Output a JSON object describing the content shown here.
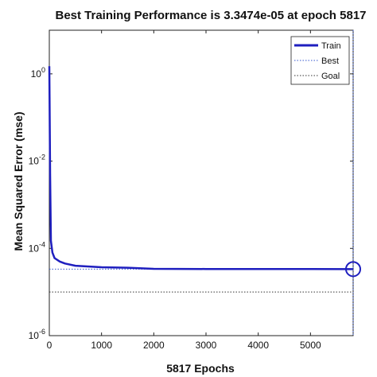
{
  "chart_data": {
    "type": "line",
    "title": "Best Training Performance is 3.3474e-05 at epoch 5817",
    "xlabel": "5817 Epochs",
    "ylabel": "Mean Squared Error  (mse)",
    "xscale": "linear",
    "yscale": "log",
    "xlim": [
      0,
      5817
    ],
    "ylim": [
      1e-06,
      10
    ],
    "x_ticks": [
      0,
      1000,
      2000,
      3000,
      4000,
      5000
    ],
    "y_ticks": [
      {
        "exp": 0,
        "base": "10",
        "power": "0"
      },
      {
        "exp": -2,
        "base": "10",
        "power": "-2"
      },
      {
        "exp": -4,
        "base": "10",
        "power": "-4"
      },
      {
        "exp": -6,
        "base": "10",
        "power": "-6"
      }
    ],
    "grid": false,
    "legend_position": "top-right",
    "series": [
      {
        "name": "Train",
        "color": "#1f1fbf",
        "style": "solid",
        "x": [
          0,
          5,
          15,
          30,
          60,
          100,
          200,
          300,
          500,
          800,
          1000,
          1500,
          2000,
          3000,
          4000,
          5000,
          5817
        ],
        "y": [
          1.5,
          0.3,
          0.005,
          0.00015,
          8e-05,
          6e-05,
          5e-05,
          4.5e-05,
          4e-05,
          3.8e-05,
          3.7e-05,
          3.6e-05,
          3.4e-05,
          3.37e-05,
          3.36e-05,
          3.35e-05,
          3.3474e-05
        ]
      }
    ],
    "best": {
      "name": "Best",
      "value": 3.3474e-05,
      "epoch": 5817,
      "color": "#3355cc",
      "style": "dotted"
    },
    "goal": {
      "name": "Goal",
      "value": 1e-05,
      "color": "#333333",
      "style": "dotted"
    }
  }
}
